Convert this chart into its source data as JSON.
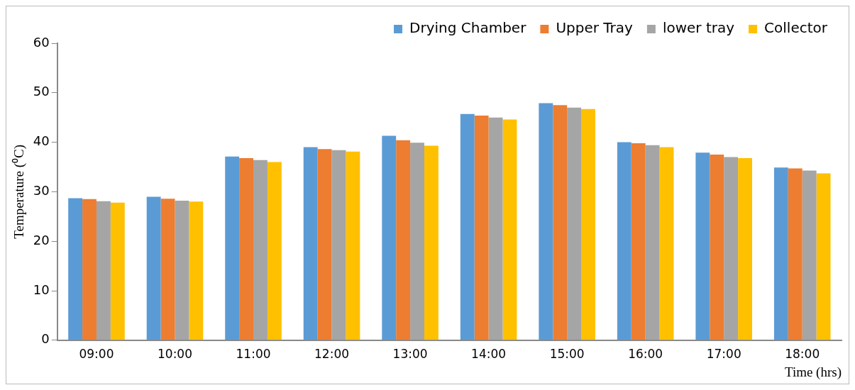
{
  "chart_data": {
    "type": "bar",
    "xlabel": "Time (hrs)",
    "ylabel": "Temperature (⁰C)",
    "categories": [
      "09:00",
      "10:00",
      "11:00",
      "12:00",
      "13:00",
      "14:00",
      "15:00",
      "16:00",
      "17:00",
      "18:00"
    ],
    "series": [
      {
        "name": "Drying Chamber",
        "color": "#5b9bd5",
        "values": [
          28.7,
          29.0,
          37.1,
          39.0,
          41.3,
          45.7,
          47.9,
          40.0,
          37.9,
          34.9
        ]
      },
      {
        "name": "Upper Tray",
        "color": "#ed7d31",
        "values": [
          28.5,
          28.6,
          36.8,
          38.6,
          40.4,
          45.4,
          47.5,
          39.8,
          37.5,
          34.7
        ]
      },
      {
        "name": "lower tray",
        "color": "#a5a5a5",
        "values": [
          28.1,
          28.2,
          36.4,
          38.4,
          39.9,
          45.0,
          47.0,
          39.4,
          37.0,
          34.3
        ]
      },
      {
        "name": "Collector",
        "color": "#ffc000",
        "values": [
          27.8,
          28.0,
          36.0,
          38.1,
          39.3,
          44.6,
          46.7,
          39.0,
          36.8,
          33.7
        ]
      }
    ],
    "ylim": [
      0,
      60
    ],
    "yticks": [
      0,
      10,
      20,
      30,
      40,
      50,
      60
    ],
    "grid": false,
    "legend": "top right"
  }
}
